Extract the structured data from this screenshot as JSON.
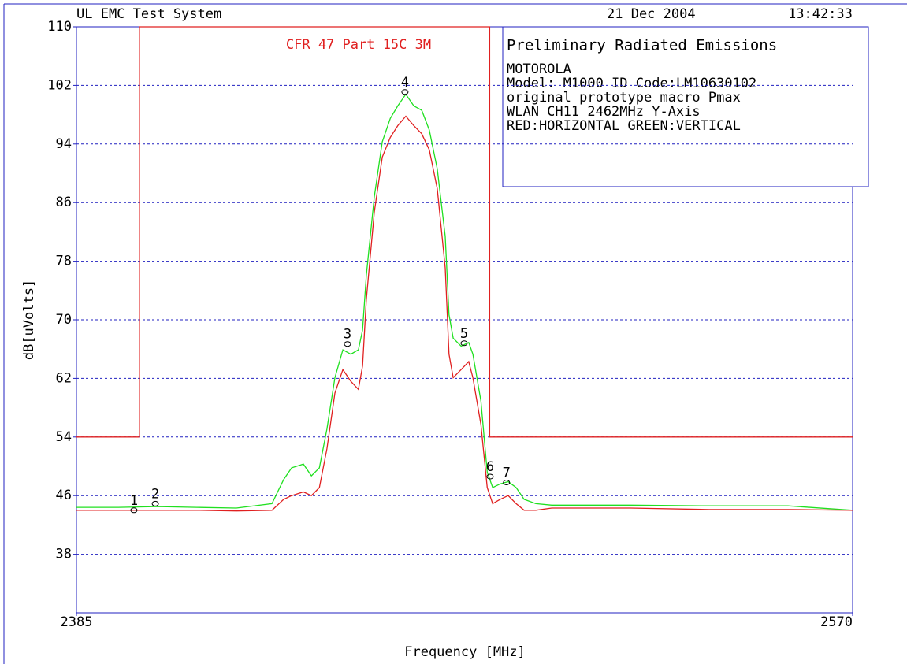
{
  "chart_data": {
    "type": "line",
    "header_left": "UL EMC Test System",
    "date": "21 Dec 2004",
    "time": "13:42:33",
    "limit_title": "CFR 47 Part 15C 3M",
    "info_lines": [
      "Preliminary Radiated Emissions",
      "MOTOROLA",
      "Model: M1000  ID Code:LM10630102",
      "original prototype macro Pmax",
      "WLAN CH11 2462MHz Y-Axis",
      "RED:HORIZONTAL  GREEN:VERTICAL"
    ],
    "x_label": "Frequency [MHz]",
    "y_label": "dB[uVolts]",
    "xlim": [
      2385,
      2570
    ],
    "xticks": [
      2385,
      2570
    ],
    "ylim": [
      30,
      110
    ],
    "yticks": [
      38,
      46,
      54,
      62,
      70,
      78,
      86,
      94,
      102,
      110
    ],
    "grid": true,
    "limit_line": {
      "color": "#e02020",
      "x": [
        2385,
        2400,
        2400,
        2483.5,
        2483.5,
        2570
      ],
      "values": [
        54,
        54,
        110,
        110,
        54,
        54
      ]
    },
    "series": [
      {
        "color": "#20e020",
        "x": [
          2385,
          2395.0,
          2404.3,
          2413.7,
          2423.1,
          2431.6,
          2434.4,
          2436.3,
          2439.1,
          2441.0,
          2442.9,
          2444.7,
          2446.6,
          2448.5,
          2450.4,
          2452.2,
          2453.2,
          2454.1,
          2456.0,
          2457.9,
          2459.8,
          2461.6,
          2463.5,
          2465.4,
          2467.3,
          2469.1,
          2471.0,
          2472.9,
          2473.8,
          2474.8,
          2476.7,
          2478.5,
          2479.5,
          2481.4,
          2482.9,
          2484.2,
          2486.0,
          2487.9,
          2489.8,
          2491.7,
          2494.5,
          2498.3,
          2517.0,
          2535.8,
          2554.6,
          2570
        ],
        "values": [
          44.4,
          44.4,
          44.5,
          44.4,
          44.3,
          44.9,
          48.2,
          49.8,
          50.3,
          48.7,
          49.8,
          55.1,
          62.1,
          65.9,
          65.3,
          65.9,
          68.6,
          76.1,
          86.8,
          94.3,
          97.5,
          99.2,
          100.8,
          99.2,
          98.6,
          95.9,
          90.6,
          81.4,
          70.7,
          67.5,
          66.4,
          66.9,
          65.3,
          58.9,
          49.2,
          47.1,
          47.6,
          47.9,
          47.1,
          45.5,
          44.9,
          44.7,
          44.7,
          44.6,
          44.6,
          44.0
        ]
      },
      {
        "color": "#e02020",
        "x": [
          2385,
          2395.0,
          2404.3,
          2413.7,
          2423.1,
          2431.6,
          2434.4,
          2436.3,
          2439.1,
          2441.0,
          2442.9,
          2444.7,
          2446.6,
          2448.5,
          2450.4,
          2452.2,
          2453.2,
          2454.1,
          2456.0,
          2457.9,
          2459.8,
          2461.6,
          2463.5,
          2465.4,
          2467.3,
          2469.1,
          2471.0,
          2472.9,
          2473.8,
          2474.8,
          2476.7,
          2478.5,
          2479.5,
          2481.4,
          2482.9,
          2484.2,
          2486.0,
          2487.9,
          2489.8,
          2491.7,
          2494.5,
          2498.3,
          2517.0,
          2535.8,
          2554.6,
          2570
        ],
        "values": [
          44.0,
          44.0,
          44.0,
          44.0,
          43.9,
          44.0,
          45.5,
          46.0,
          46.5,
          46.0,
          47.1,
          52.4,
          60.0,
          63.2,
          61.6,
          60.5,
          63.7,
          72.8,
          84.7,
          92.2,
          94.9,
          96.5,
          97.8,
          96.5,
          95.4,
          93.2,
          87.9,
          77.1,
          65.3,
          62.1,
          63.2,
          64.3,
          62.1,
          55.7,
          47.1,
          44.9,
          45.5,
          46.0,
          44.9,
          44.0,
          44.0,
          44.3,
          44.3,
          44.1,
          44.1,
          44.0
        ]
      }
    ],
    "markers": [
      {
        "label": "1",
        "x": 2398.7,
        "y": 44.0
      },
      {
        "label": "2",
        "x": 2403.8,
        "y": 44.9
      },
      {
        "label": "3",
        "x": 2449.6,
        "y": 66.7
      },
      {
        "label": "4",
        "x": 2463.3,
        "y": 101.1
      },
      {
        "label": "5",
        "x": 2477.4,
        "y": 66.8
      },
      {
        "label": "6",
        "x": 2483.6,
        "y": 48.6
      },
      {
        "label": "7",
        "x": 2487.5,
        "y": 47.8
      }
    ]
  }
}
